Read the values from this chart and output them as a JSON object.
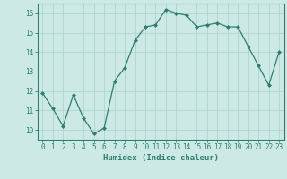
{
  "x": [
    0,
    1,
    2,
    3,
    4,
    5,
    6,
    7,
    8,
    9,
    10,
    11,
    12,
    13,
    14,
    15,
    16,
    17,
    18,
    19,
    20,
    21,
    22,
    23
  ],
  "y": [
    11.9,
    11.1,
    10.2,
    11.8,
    10.6,
    9.8,
    10.1,
    12.5,
    13.2,
    14.6,
    15.3,
    15.4,
    16.2,
    16.0,
    15.9,
    15.3,
    15.4,
    15.5,
    15.3,
    15.3,
    14.3,
    13.3,
    12.3,
    14.0
  ],
  "line_color": "#2e7d6e",
  "marker": "D",
  "marker_size": 2.0,
  "bg_color": "#cce9e5",
  "grid_color": "#b0d4d0",
  "xlabel": "Humidex (Indice chaleur)",
  "xlim": [
    -0.5,
    23.5
  ],
  "ylim": [
    9.5,
    16.5
  ],
  "yticks": [
    10,
    11,
    12,
    13,
    14,
    15,
    16
  ],
  "xticks": [
    0,
    1,
    2,
    3,
    4,
    5,
    6,
    7,
    8,
    9,
    10,
    11,
    12,
    13,
    14,
    15,
    16,
    17,
    18,
    19,
    20,
    21,
    22,
    23
  ],
  "tick_color": "#2e7d6e",
  "axis_color": "#2e7d6e",
  "label_fontsize": 6.5,
  "tick_fontsize": 5.5
}
